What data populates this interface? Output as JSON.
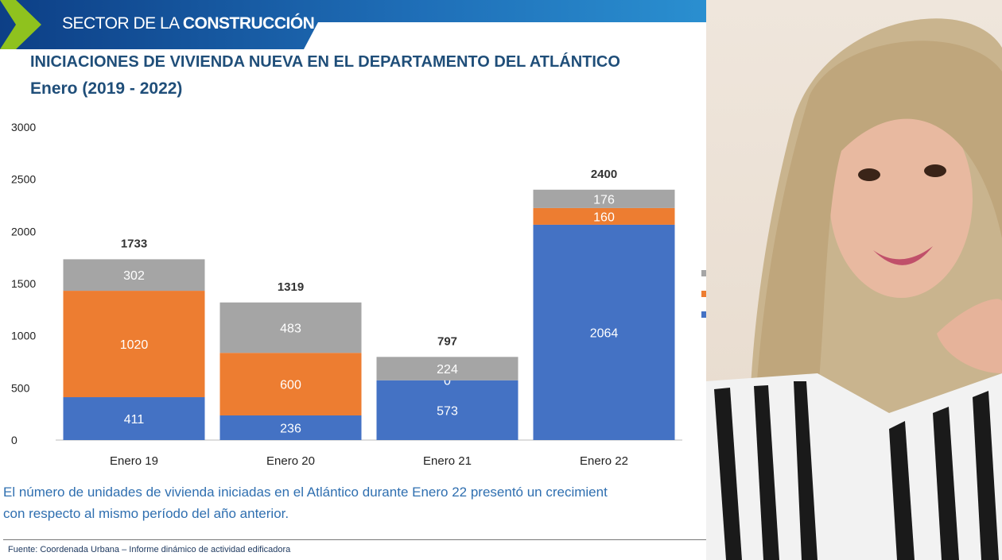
{
  "header": {
    "banner_regular": "SECTOR DE LA ",
    "banner_bold": "CONSTRUCCIÓN"
  },
  "title": "INICIACIONES DE VIVIENDA NUEVA EN EL DEPARTAMENTO DEL ATLÁNTICO",
  "subtitle": "Enero (2019 - 2022)",
  "paragraph": [
    "El número de unidades de vivienda iniciadas en el Atlántico durante Enero 22 presentó un crecimient",
    "con respecto al mismo período del año anterior."
  ],
  "source": "Fuente: Coordenada Urbana – Informe dinámico de actividad edificadora",
  "chart_data": {
    "type": "bar",
    "stacked": true,
    "categories": [
      "Enero 19",
      "Enero 20",
      "Enero 21",
      "Enero 22"
    ],
    "series": [
      {
        "values": [
          411,
          236,
          573,
          2064
        ],
        "color": "#4472c4"
      },
      {
        "values": [
          1020,
          600,
          0,
          160
        ],
        "color": "#ed7d31"
      },
      {
        "values": [
          302,
          483,
          224,
          176
        ],
        "color": "#a5a5a5"
      }
    ],
    "totals": [
      1733,
      1319,
      797,
      2400
    ],
    "yticks": [
      0,
      500,
      1000,
      1500,
      2000,
      2500,
      3000
    ],
    "ylim": [
      0,
      3000
    ],
    "grid": false,
    "legend": "right (cropped)"
  },
  "photo": {
    "description_icon": "person-photo"
  }
}
